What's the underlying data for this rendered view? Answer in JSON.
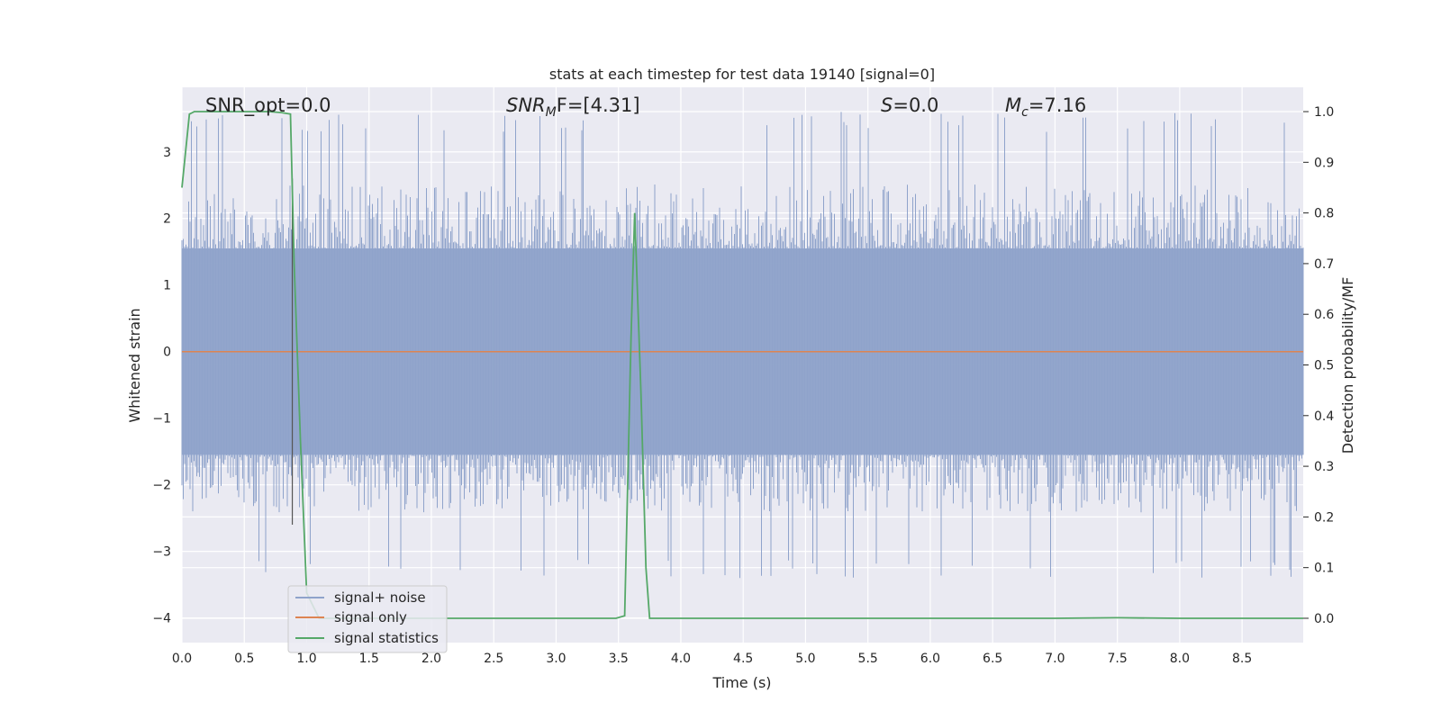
{
  "chart_data": {
    "type": "line",
    "title": "stats at each timestep for test data 19140 [signal=0]",
    "xlabel": "Time (s)",
    "ylabel": "Whitened strain",
    "y2label": "Detection probability/MF",
    "xlim": [
      0.0,
      8.99
    ],
    "ylim": [
      -4.37,
      3.97
    ],
    "y2lim": [
      -0.048,
      1.048
    ],
    "x_ticks": [
      "0.0",
      "0.5",
      "1.0",
      "1.5",
      "2.0",
      "2.5",
      "3.0",
      "3.5",
      "4.0",
      "4.5",
      "5.0",
      "5.5",
      "6.0",
      "6.5",
      "7.0",
      "7.5",
      "8.0",
      "8.5"
    ],
    "x_tick_values": [
      0,
      0.5,
      1,
      1.5,
      2,
      2.5,
      3,
      3.5,
      4,
      4.5,
      5,
      5.5,
      6,
      6.5,
      7,
      7.5,
      8,
      8.5
    ],
    "y_ticks": [
      "3",
      "2",
      "1",
      "0",
      "−1",
      "−2",
      "−3",
      "−4"
    ],
    "y_tick_values": [
      3,
      2,
      1,
      0,
      -1,
      -2,
      -3,
      -4
    ],
    "y2_ticks": [
      "1.0",
      "0.9",
      "0.8",
      "0.7",
      "0.6",
      "0.5",
      "0.4",
      "0.3",
      "0.2",
      "0.1",
      "0.0"
    ],
    "y2_tick_values": [
      1,
      0.9,
      0.8,
      0.7,
      0.6,
      0.5,
      0.4,
      0.3,
      0.2,
      0.1,
      0
    ],
    "grid": true,
    "legend_position": "bottom-left",
    "annotations": {
      "snr_opt": "SNR_opt=0.0",
      "snr_mf_main": "SNR",
      "snr_mf_sub": "M",
      "snr_mf_rest": "F=[4.31]",
      "s_main": "S",
      "s_rest": "=0.0",
      "mc_main": "M",
      "mc_sub": "c",
      "mc_rest": "=7.16"
    },
    "series": [
      {
        "name": "signal+ noise",
        "axis": "left",
        "color": "#8fa3cb",
        "kind": "noise",
        "noise_core_range": [
          -1.55,
          1.55
        ],
        "noise_peak_range": [
          -3.4,
          3.6
        ],
        "sample_rate_hz": 2048
      },
      {
        "name": "signal only",
        "axis": "left",
        "color": "#dd8452",
        "x": [
          0.0,
          8.99
        ],
        "y": [
          0.0,
          0.0
        ]
      },
      {
        "name": "signal statistics",
        "axis": "right",
        "color": "#55a868",
        "x": [
          0.0,
          0.06,
          0.1,
          0.15,
          0.2,
          0.3,
          0.5,
          0.7,
          0.8,
          0.87,
          0.9,
          0.95,
          1.0,
          1.1,
          1.2,
          1.5,
          2.0,
          2.5,
          3.0,
          3.48,
          3.55,
          3.6,
          3.63,
          3.68,
          3.72,
          3.75,
          4.0,
          4.5,
          5.0,
          5.5,
          6.0,
          6.5,
          7.0,
          7.5,
          8.0,
          8.5,
          8.99
        ],
        "y": [
          0.85,
          0.995,
          1.0,
          1.0,
          1.0,
          1.0,
          1.0,
          1.0,
          0.998,
          0.995,
          0.7,
          0.35,
          0.05,
          0.0,
          0.0,
          0.0,
          0.0,
          0.0,
          0.0,
          0.0,
          0.005,
          0.55,
          0.8,
          0.45,
          0.1,
          0.0,
          0.0,
          0.0,
          0.0,
          0.0,
          0.0,
          0.0,
          0.0,
          0.001,
          0.0,
          0.0,
          0.0
        ]
      }
    ],
    "cursor_line_x": 0.885
  }
}
